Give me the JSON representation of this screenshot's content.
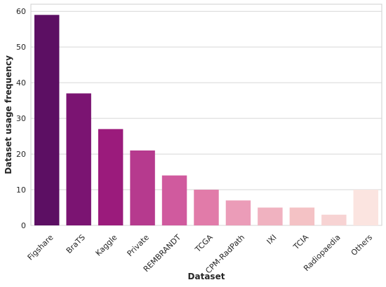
{
  "chart_data": {
    "type": "bar",
    "title": "",
    "xlabel": "Dataset",
    "ylabel": "Dataset usage frequency",
    "categories": [
      "Figshare",
      "BraTS",
      "Kaggle",
      "Private",
      "REMBRANDT",
      "TCGA",
      "CPM-RadPath",
      "IXI",
      "TCIA",
      "Radiopaedia",
      "Others"
    ],
    "values": [
      59,
      37,
      27,
      21,
      14,
      10,
      7,
      5,
      5,
      3,
      10
    ],
    "bar_colors": [
      "#5c0f63",
      "#7b1472",
      "#9b1b7c",
      "#b63a8e",
      "#d05a9e",
      "#e17ba9",
      "#eb9cb8",
      "#f0b2c0",
      "#f4c2c5",
      "#f7d3d3",
      "#fbe4e0"
    ],
    "ylim": [
      0,
      62
    ],
    "yticks": [
      0,
      10,
      20,
      30,
      40,
      50,
      60
    ],
    "grid": true
  }
}
